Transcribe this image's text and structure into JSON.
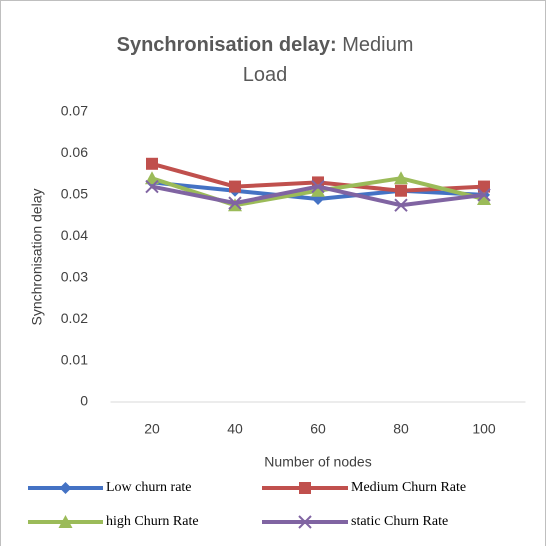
{
  "chart_data": {
    "type": "line",
    "title": "Synchronisation delay:",
    "subtitle": "Medium Load",
    "x_label": "Number of nodes",
    "y_label": "Synchronisation delay",
    "categories": [
      "20",
      "40",
      "60",
      "80",
      "100"
    ],
    "series": [
      {
        "name": "Low churn rate",
        "color": "#4472c4",
        "marker": "diamond",
        "values": [
          0.053,
          0.051,
          0.049,
          0.051,
          0.05
        ]
      },
      {
        "name": "Medium Churn Rate",
        "color": "#c0504d",
        "marker": "square",
        "values": [
          0.0575,
          0.052,
          0.053,
          0.051,
          0.052
        ]
      },
      {
        "name": "high Churn Rate",
        "color": "#9bbb59",
        "marker": "triangle",
        "values": [
          0.054,
          0.0475,
          0.051,
          0.054,
          0.049
        ]
      },
      {
        "name": "static Churn Rate",
        "color": "#8064a2",
        "marker": "x",
        "values": [
          0.052,
          0.048,
          0.052,
          0.0475,
          0.05
        ]
      }
    ],
    "ylim": [
      0,
      0.07
    ],
    "yticks": [
      0,
      0.01,
      0.02,
      0.03,
      0.04,
      0.05,
      0.06,
      0.07
    ],
    "grid": false,
    "legend": "bottom"
  }
}
